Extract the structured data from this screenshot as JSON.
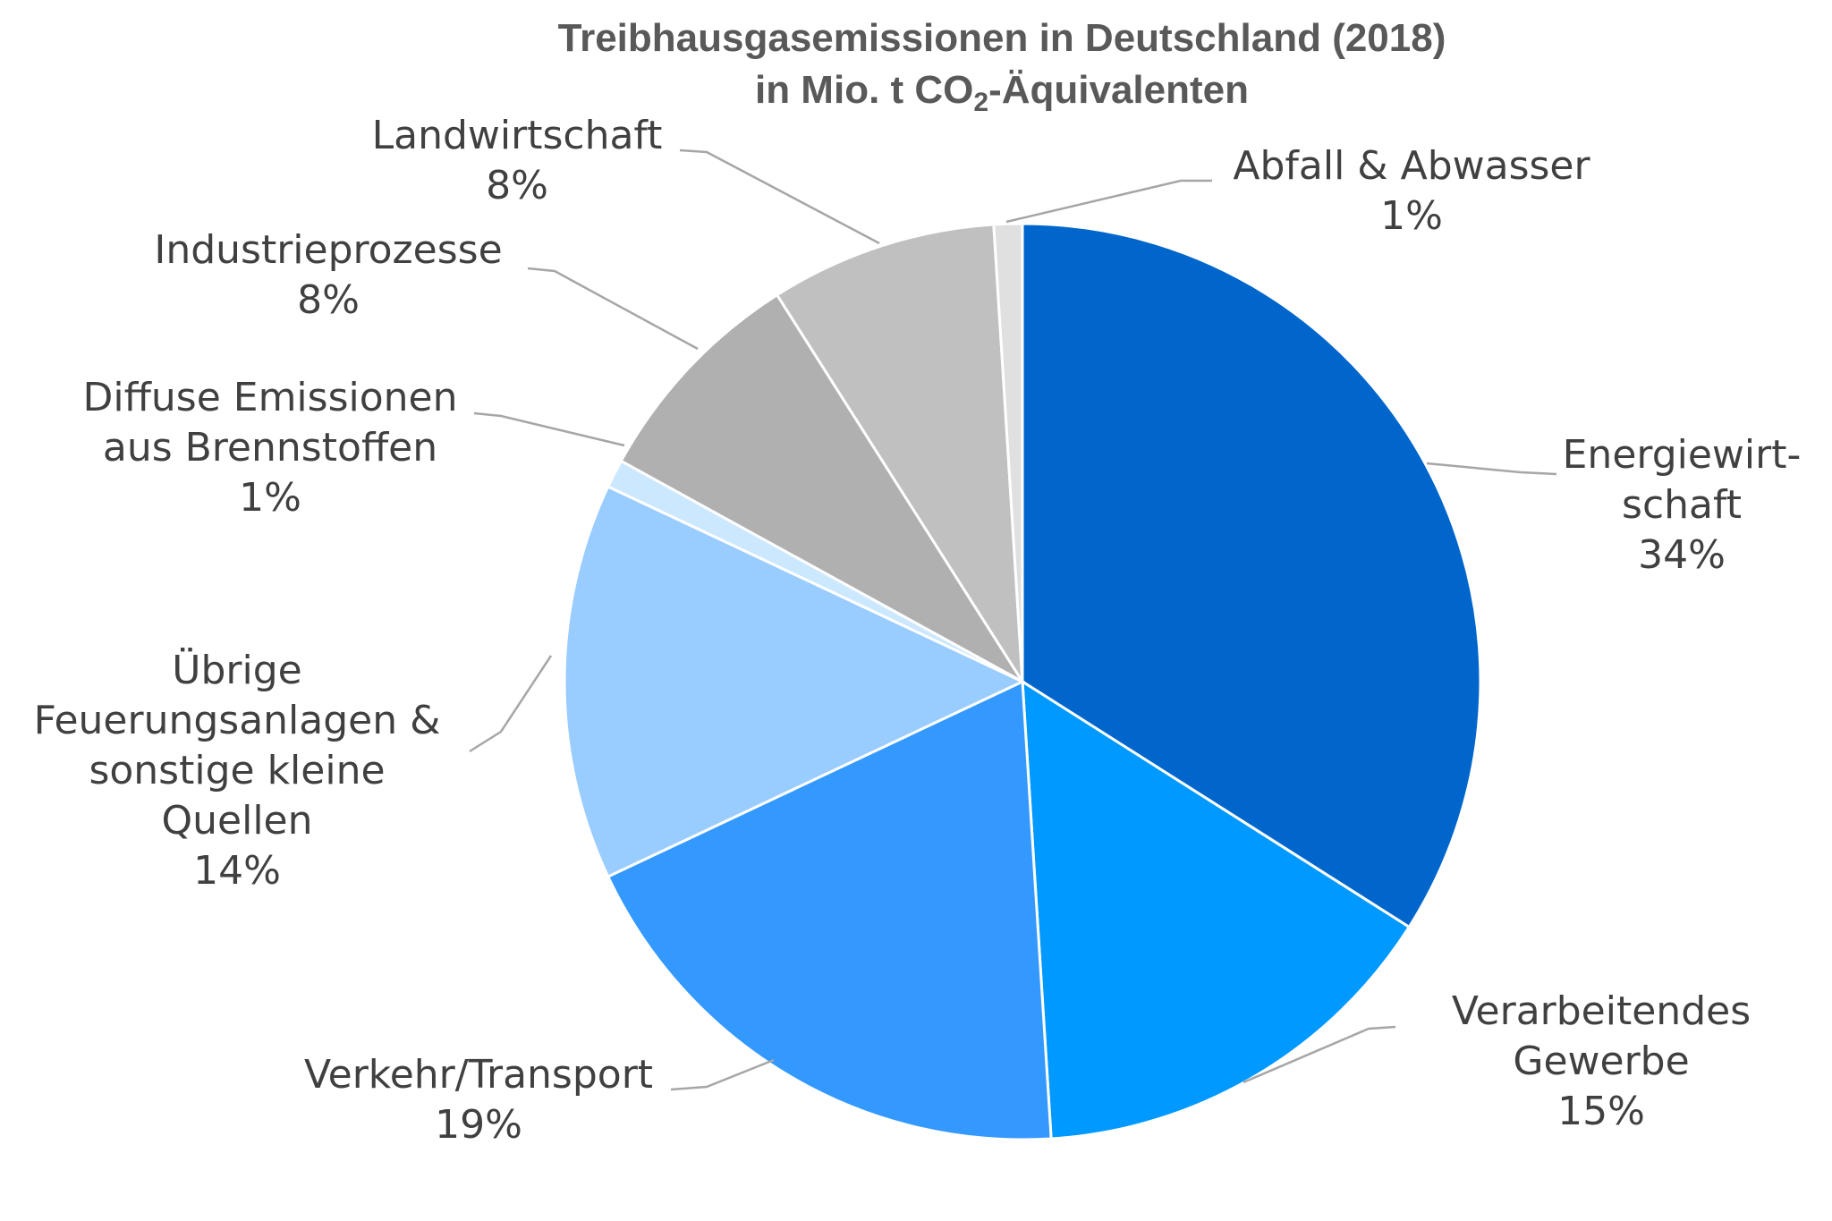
{
  "chart_data": {
    "type": "pie",
    "title_line1": "Treibhausgasemissionen in Deutschland (2018)",
    "title_line2": {
      "before": "in Mio. t CO",
      "subscript": "2",
      "after": "-Äquivalenten"
    },
    "slices": [
      {
        "label_lines": [
          "Energiewirt-",
          "schaft"
        ],
        "percent_label": "34%",
        "value": 34,
        "color": "#0066cc"
      },
      {
        "label_lines": [
          "Verarbeitendes",
          "Gewerbe"
        ],
        "percent_label": "15%",
        "value": 15,
        "color": "#0099ff"
      },
      {
        "label_lines": [
          "Verkehr/Transport"
        ],
        "percent_label": "19%",
        "value": 19,
        "color": "#3399ff"
      },
      {
        "label_lines": [
          "Übrige",
          "Feuerungsanlagen &",
          "sonstige kleine",
          "Quellen"
        ],
        "percent_label": "14%",
        "value": 14,
        "color": "#99ccff"
      },
      {
        "label_lines": [
          "Diffuse Emissionen",
          "aus Brennstoffen"
        ],
        "percent_label": "1%",
        "value": 1,
        "color": "#cce8ff"
      },
      {
        "label_lines": [
          "Industrieprozesse"
        ],
        "percent_label": "8%",
        "value": 8,
        "color": "#b0b0b0"
      },
      {
        "label_lines": [
          "Landwirtschaft"
        ],
        "percent_label": "8%",
        "value": 8,
        "color": "#c0c0c0"
      },
      {
        "label_lines": [
          "Abfall & Abwasser"
        ],
        "percent_label": "1%",
        "value": 1,
        "color": "#e0e0e0"
      }
    ]
  }
}
